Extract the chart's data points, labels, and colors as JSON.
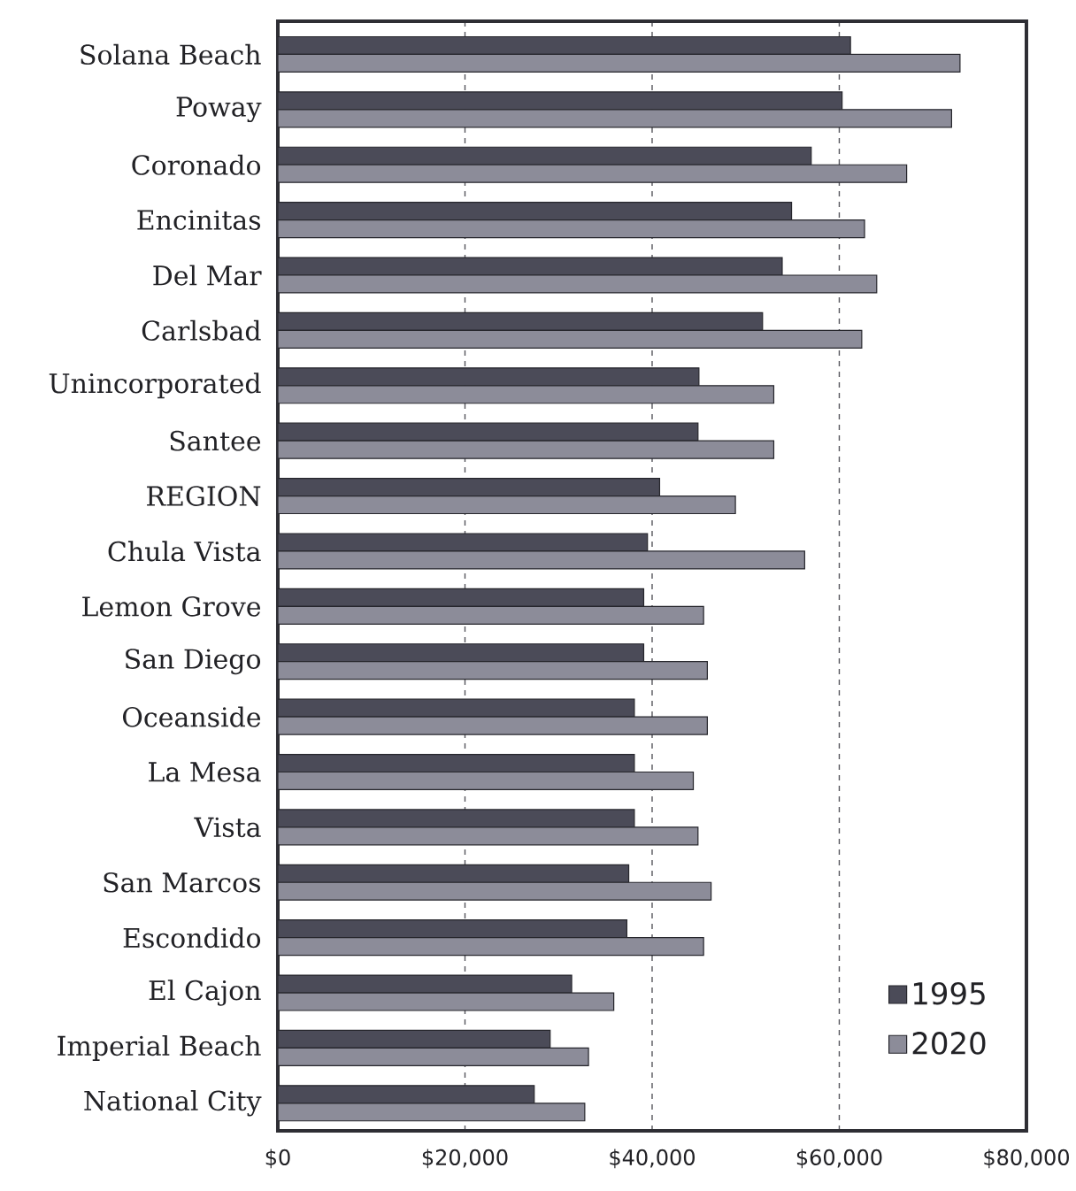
{
  "chart_data": {
    "type": "bar",
    "orientation": "horizontal",
    "categories": [
      "Solana Beach",
      "Poway",
      "Coronado",
      "Encinitas",
      "Del Mar",
      "Carlsbad",
      "Unincorporated",
      "Santee",
      "REGION",
      "Chula Vista",
      "Lemon Grove",
      "San Diego",
      "Oceanside",
      "La Mesa",
      "Vista",
      "San Marcos",
      "Escondido",
      "El Cajon",
      "Imperial Beach",
      "National City"
    ],
    "series": [
      {
        "name": "1995",
        "color": "#4b4b58",
        "values": [
          61200,
          60300,
          57000,
          54900,
          53900,
          51800,
          45000,
          44900,
          40800,
          39500,
          39100,
          39100,
          38100,
          38100,
          38100,
          37500,
          37300,
          31400,
          29100,
          27400
        ]
      },
      {
        "name": "2020",
        "color": "#8c8c99",
        "values": [
          72900,
          72000,
          67200,
          62700,
          64000,
          62400,
          53000,
          53000,
          48900,
          56300,
          45500,
          45900,
          45900,
          44400,
          44900,
          46300,
          45500,
          35900,
          33200,
          32800
        ]
      }
    ],
    "xlim": [
      0,
      80000
    ],
    "xticks": [
      {
        "value": 0,
        "label": "$0"
      },
      {
        "value": 20000,
        "label": "$20,000"
      },
      {
        "value": 40000,
        "label": "$40,000"
      },
      {
        "value": 60000,
        "label": "$60,000"
      },
      {
        "value": 80000,
        "label": "$80,000"
      }
    ],
    "grid": "x",
    "legend": "bottom right"
  }
}
